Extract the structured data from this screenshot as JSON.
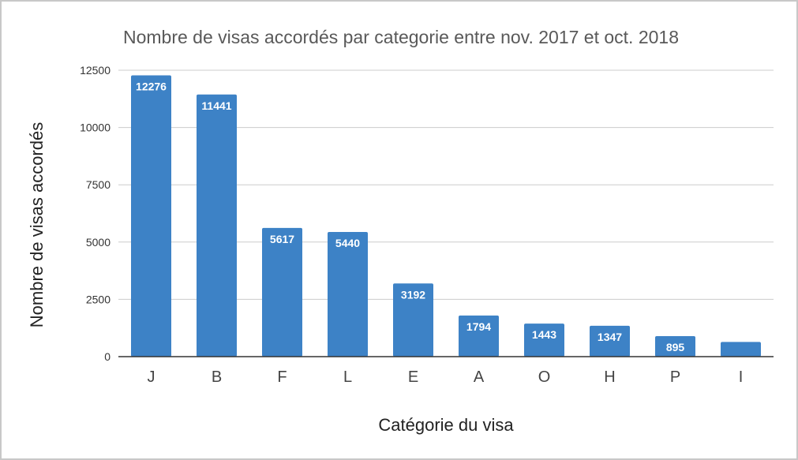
{
  "chart_data": {
    "type": "bar",
    "title": "Nombre de visas accordés par categorie entre nov. 2017 et oct. 2018",
    "xlabel": "Catégorie du visa",
    "ylabel": "Nombre de visas accordés",
    "categories": [
      "J",
      "B",
      "F",
      "L",
      "E",
      "A",
      "O",
      "H",
      "P",
      "I"
    ],
    "values": [
      12276,
      11441,
      5617,
      5440,
      3192,
      1794,
      1443,
      1347,
      895,
      640
    ],
    "data_labels": [
      "12276",
      "11441",
      "5617",
      "5440",
      "3192",
      "1794",
      "1443",
      "1347",
      "895",
      ""
    ],
    "yticks": [
      "0",
      "2500",
      "5000",
      "7500",
      "10000",
      "12500"
    ],
    "ylim": [
      0,
      12500
    ],
    "grid": true,
    "legend": "none",
    "bar_color": "#3d82c6",
    "grid_color": "#cccccc",
    "axis_color": "#333333",
    "text_color": "#595959"
  }
}
